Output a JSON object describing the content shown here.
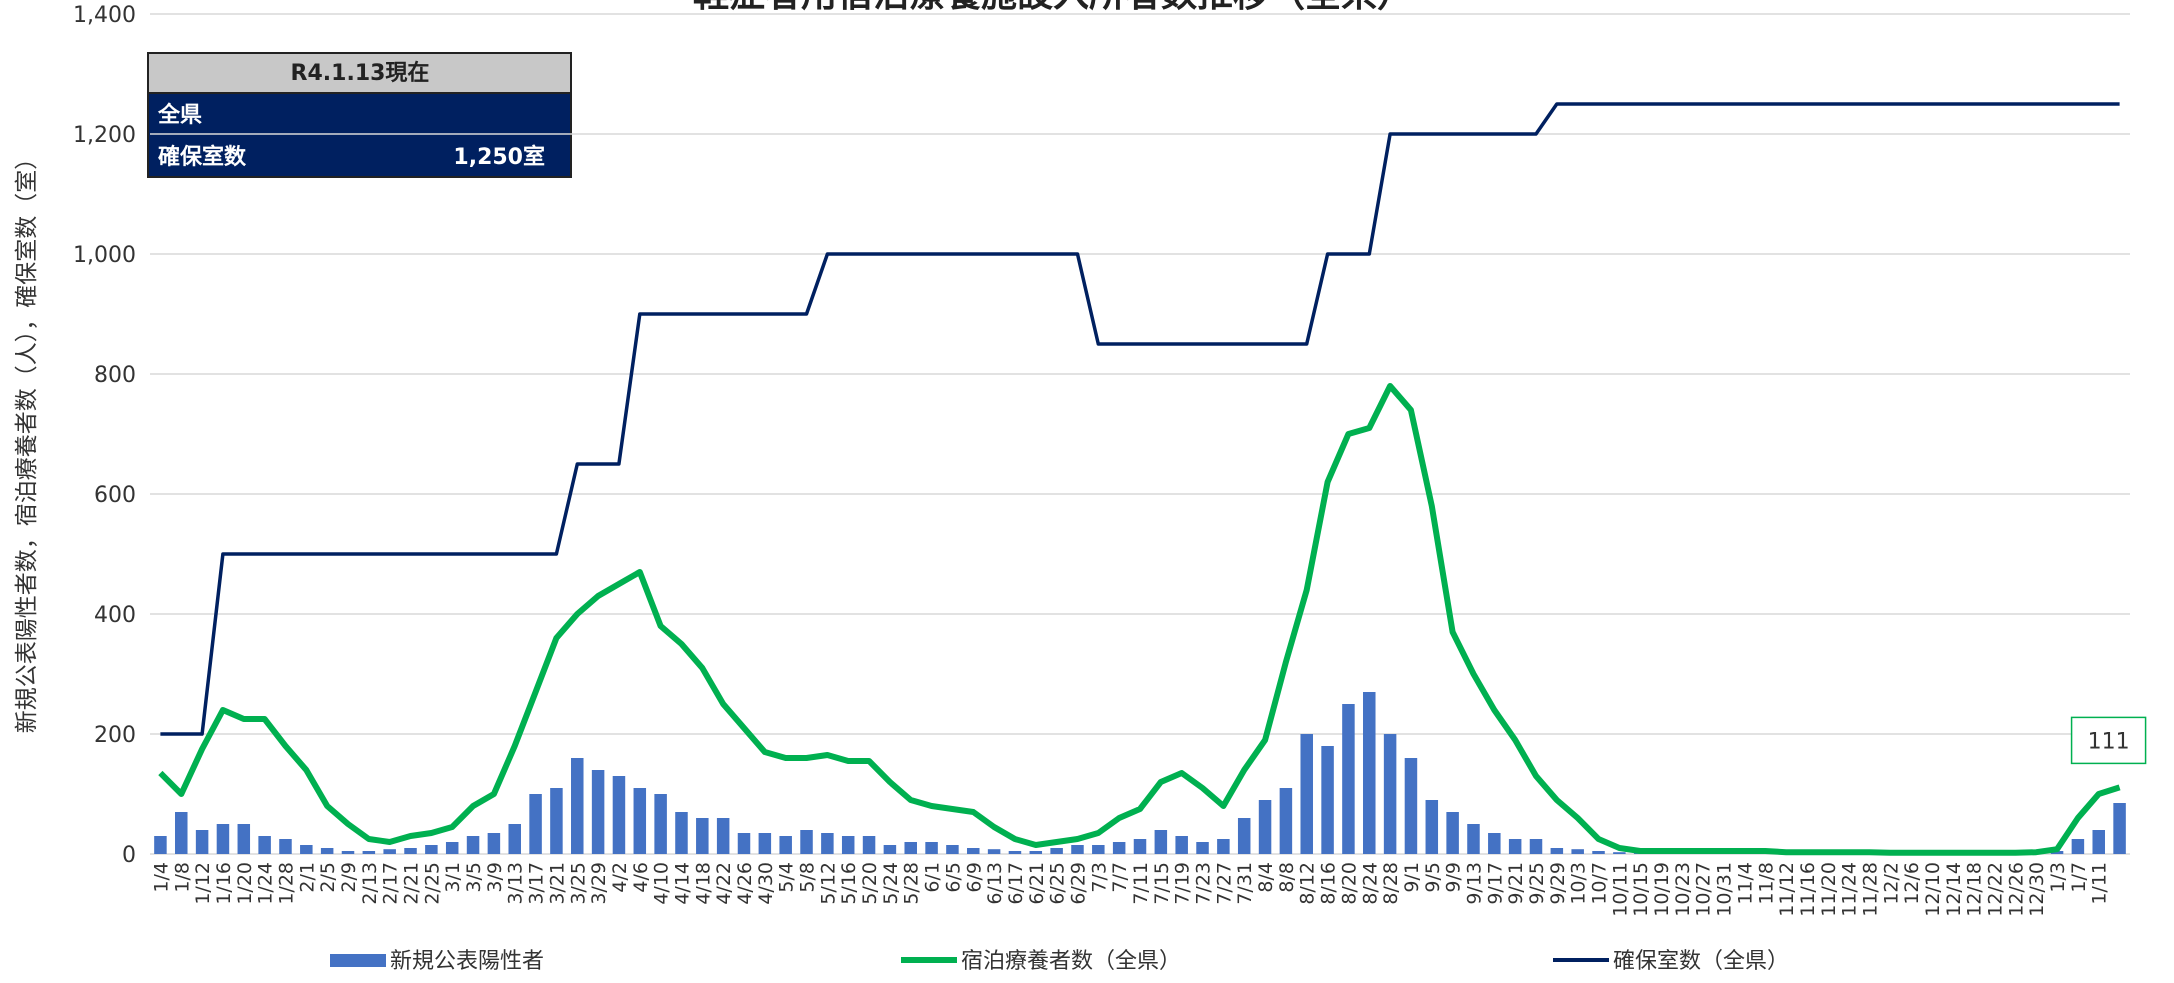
{
  "chart_data": {
    "type": "bar_line",
    "title": "軽症者用宿泊療養施設入所者数推移（全県）",
    "y_label": "新規公表陽性者数，宿泊療養者数（人），確保室数（室）",
    "categories": [
      "1/4",
      "1/8",
      "1/12",
      "1/16",
      "1/20",
      "1/24",
      "1/28",
      "2/1",
      "2/5",
      "2/9",
      "2/13",
      "2/17",
      "2/21",
      "2/25",
      "3/1",
      "3/5",
      "3/9",
      "3/13",
      "3/17",
      "3/21",
      "3/25",
      "3/29",
      "4/2",
      "4/6",
      "4/10",
      "4/14",
      "4/18",
      "4/22",
      "4/26",
      "4/30",
      "5/4",
      "5/8",
      "5/12",
      "5/16",
      "5/20",
      "5/24",
      "5/28",
      "6/1",
      "6/5",
      "6/9",
      "6/13",
      "6/17",
      "6/21",
      "6/25",
      "6/29",
      "7/3",
      "7/7",
      "7/11",
      "7/15",
      "7/19",
      "7/23",
      "7/27",
      "7/31",
      "8/4",
      "8/8",
      "8/12",
      "8/16",
      "8/20",
      "8/24",
      "8/28",
      "9/1",
      "9/5",
      "9/9",
      "9/13",
      "9/17",
      "9/21",
      "9/25",
      "9/29",
      "10/3",
      "10/7",
      "10/11",
      "10/15",
      "10/19",
      "10/23",
      "10/27",
      "10/31",
      "11/4",
      "11/8",
      "11/12",
      "11/16",
      "11/20",
      "11/24",
      "11/28",
      "12/2",
      "12/6",
      "12/10",
      "12/14",
      "12/18",
      "12/22",
      "12/26",
      "12/30",
      "1/3",
      "1/7",
      "1/11",
      null
    ],
    "series": [
      {
        "name": "新規公表陽性者",
        "color": "#4472c4",
        "kind": "bar",
        "values": [
          30,
          70,
          40,
          50,
          50,
          30,
          25,
          15,
          10,
          5,
          5,
          8,
          10,
          15,
          20,
          30,
          35,
          50,
          100,
          110,
          160,
          140,
          130,
          110,
          100,
          70,
          60,
          60,
          35,
          35,
          30,
          40,
          35,
          30,
          30,
          15,
          20,
          20,
          15,
          10,
          8,
          5,
          5,
          10,
          15,
          15,
          20,
          25,
          40,
          30,
          20,
          25,
          60,
          90,
          110,
          200,
          180,
          250,
          270,
          200,
          160,
          90,
          70,
          50,
          35,
          25,
          25,
          10,
          8,
          5,
          3,
          2,
          2,
          2,
          2,
          2,
          2,
          2,
          2,
          2,
          2,
          2,
          2,
          2,
          2,
          2,
          2,
          2,
          2,
          2,
          2,
          5,
          25,
          40,
          85
        ]
      },
      {
        "name": "宿泊療養者数（全県）",
        "color": "#00b050",
        "kind": "line",
        "values": [
          135,
          100,
          175,
          240,
          225,
          225,
          180,
          140,
          80,
          50,
          25,
          20,
          30,
          35,
          45,
          80,
          100,
          180,
          270,
          360,
          400,
          430,
          450,
          470,
          380,
          350,
          310,
          250,
          210,
          170,
          160,
          160,
          165,
          155,
          155,
          120,
          90,
          80,
          75,
          70,
          45,
          25,
          15,
          20,
          25,
          35,
          60,
          75,
          120,
          135,
          110,
          80,
          140,
          190,
          320,
          440,
          620,
          700,
          710,
          780,
          740,
          580,
          370,
          300,
          240,
          190,
          130,
          90,
          60,
          25,
          10,
          5,
          5,
          5,
          5,
          5,
          5,
          5,
          3,
          3,
          3,
          3,
          3,
          2,
          2,
          2,
          2,
          2,
          2,
          2,
          3,
          8,
          60,
          100,
          111
        ]
      },
      {
        "name": "確保室数（全県）",
        "color": "#002060",
        "kind": "line",
        "values": [
          200,
          200,
          200,
          500,
          500,
          500,
          500,
          500,
          500,
          500,
          500,
          500,
          500,
          500,
          500,
          500,
          500,
          500,
          500,
          500,
          650,
          650,
          650,
          900,
          900,
          900,
          900,
          900,
          900,
          900,
          900,
          900,
          1000,
          1000,
          1000,
          1000,
          1000,
          1000,
          1000,
          1000,
          1000,
          1000,
          1000,
          1000,
          1000,
          850,
          850,
          850,
          850,
          850,
          850,
          850,
          850,
          850,
          850,
          850,
          1000,
          1000,
          1000,
          1200,
          1200,
          1200,
          1200,
          1200,
          1200,
          1200,
          1200,
          1250,
          1250,
          1250,
          1250,
          1250,
          1250,
          1250,
          1250,
          1250,
          1250,
          1250,
          1250,
          1250,
          1250,
          1250,
          1250,
          1250,
          1250,
          1250,
          1250,
          1250,
          1250,
          1250,
          1250,
          1250,
          1250,
          1250,
          1250
        ]
      }
    ],
    "ylim": [
      0,
      1400
    ],
    "yticks": [
      0,
      200,
      400,
      600,
      800,
      {
        "value": 1000,
        "label": "1,000"
      },
      {
        "value": 1200,
        "label": "1,200"
      },
      {
        "value": 1400,
        "label": "1,400"
      }
    ],
    "grid": true,
    "legend": "bottom"
  },
  "info_box": {
    "header": "R4.1.13現在",
    "area": "全県",
    "label": "確保室数",
    "value": "1,250室"
  }
}
